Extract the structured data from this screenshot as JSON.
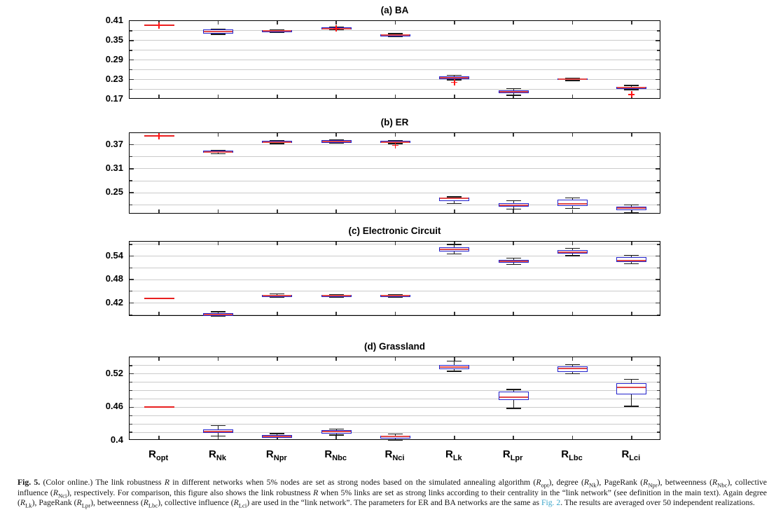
{
  "figure": {
    "link_color": "#3ba5c9",
    "caption_segments": [
      {
        "t": "Fig. 5.",
        "s": "b"
      },
      {
        "t": " (Color online.) The link robustness "
      },
      {
        "t": "R",
        "s": "i"
      },
      {
        "t": " in different networks when 5% nodes are set as strong nodes based on the simulated annealing algorithm ("
      },
      {
        "t": "R",
        "s": "i"
      },
      {
        "t": "opt",
        "s": "sub"
      },
      {
        "t": "), degree ("
      },
      {
        "t": "R",
        "s": "i"
      },
      {
        "t": "Nk",
        "s": "sub"
      },
      {
        "t": "), PageRank ("
      },
      {
        "t": "R",
        "s": "i"
      },
      {
        "t": "Npr",
        "s": "sub"
      },
      {
        "t": "), betweenness ("
      },
      {
        "t": "R",
        "s": "i"
      },
      {
        "t": "Nbc",
        "s": "sub"
      },
      {
        "t": "), collective influence ("
      },
      {
        "t": "R",
        "s": "i"
      },
      {
        "t": "Nci",
        "s": "sub"
      },
      {
        "t": "), respectively. For comparison, this figure also shows the link robustness "
      },
      {
        "t": "R",
        "s": "i"
      },
      {
        "t": " when 5% links are set as strong links according to their centrality in the “link network” (see definition in the main text). Again degree ("
      },
      {
        "t": "R",
        "s": "i"
      },
      {
        "t": "Lk",
        "s": "sub"
      },
      {
        "t": "), PageRank ("
      },
      {
        "t": "R",
        "s": "i"
      },
      {
        "t": "Lpr",
        "s": "sub"
      },
      {
        "t": "), betweenness ("
      },
      {
        "t": "R",
        "s": "i"
      },
      {
        "t": "Lbc",
        "s": "sub"
      },
      {
        "t": "), collective influence ("
      },
      {
        "t": "R",
        "s": "i"
      },
      {
        "t": "Lci",
        "s": "sub"
      },
      {
        "t": ") are used in the “link network”. The parameters for ER and BA networks are the same as "
      },
      {
        "t": "Fig. 2",
        "s": "link"
      },
      {
        "t": ". The results are averaged over 50 independent realizations."
      }
    ]
  },
  "chart_data": {
    "type": "boxplot",
    "colors": {
      "box_edge": "#2222cc",
      "median": "#e04848",
      "whisker": "#1a1a1a",
      "outlier": "#ff1515",
      "grid": "#cbcbcb",
      "frame": "#000000"
    },
    "categories": [
      {
        "key": "R_opt",
        "base": "R",
        "sub": "opt"
      },
      {
        "key": "R_Nk",
        "base": "R",
        "sub": "Nk"
      },
      {
        "key": "R_Npr",
        "base": "R",
        "sub": "Npr"
      },
      {
        "key": "R_Nbc",
        "base": "R",
        "sub": "Nbc"
      },
      {
        "key": "R_Nci",
        "base": "R",
        "sub": "Nci"
      },
      {
        "key": "R_Lk",
        "base": "R",
        "sub": "Lk"
      },
      {
        "key": "R_Lpr",
        "base": "R",
        "sub": "Lpr"
      },
      {
        "key": "R_Lbc",
        "base": "R",
        "sub": "Lbc"
      },
      {
        "key": "R_Lci",
        "base": "R",
        "sub": "Lci"
      }
    ],
    "panels": [
      {
        "id": "a",
        "label": "(a) BA",
        "ylim": [
          0.17,
          0.41
        ],
        "yticks": [
          "0.41",
          "0.35",
          "0.29",
          "0.23",
          "0.17"
        ],
        "ytick_values": [
          0.41,
          0.35,
          0.29,
          0.23,
          0.17
        ],
        "grid_step": 0.03,
        "grid_anchor": 0.41,
        "boxes": [
          {
            "cat": "R_opt",
            "line_only": true,
            "median": 0.397,
            "outliers": [
              0.397
            ]
          },
          {
            "cat": "R_Nk",
            "q1": 0.3715,
            "median": 0.378,
            "q3": 0.3835,
            "lo": 0.369,
            "hi": 0.385,
            "outliers": []
          },
          {
            "cat": "R_Npr",
            "q1": 0.375,
            "median": 0.379,
            "q3": 0.382,
            "lo": 0.374,
            "hi": 0.383,
            "outliers": []
          },
          {
            "cat": "R_Nbc",
            "q1": 0.384,
            "median": 0.387,
            "q3": 0.391,
            "lo": 0.383,
            "hi": 0.392,
            "outliers": [
              0.3865
            ]
          },
          {
            "cat": "R_Nci",
            "q1": 0.363,
            "median": 0.3665,
            "q3": 0.37,
            "lo": 0.362,
            "hi": 0.371,
            "outliers": []
          },
          {
            "cat": "R_Lk",
            "q1": 0.2315,
            "median": 0.2355,
            "q3": 0.239,
            "lo": 0.229,
            "hi": 0.2435,
            "outliers": [
              0.222
            ]
          },
          {
            "cat": "R_Lpr",
            "q1": 0.188,
            "median": 0.1925,
            "q3": 0.197,
            "lo": 0.182,
            "hi": 0.202,
            "outliers": []
          },
          {
            "cat": "R_Lbc",
            "q1": 0.2285,
            "median": 0.2305,
            "q3": 0.2325,
            "lo": 0.227,
            "hi": 0.235,
            "outliers": []
          },
          {
            "cat": "R_Lci",
            "q1": 0.201,
            "median": 0.2045,
            "q3": 0.208,
            "lo": 0.199,
            "hi": 0.212,
            "outliers": [
              0.1845
            ]
          }
        ]
      },
      {
        "id": "b",
        "label": "(b) ER",
        "ylim": [
          0.196,
          0.4
        ],
        "yticks": [
          "0.37",
          "0.31",
          "0.25"
        ],
        "ytick_values": [
          0.37,
          0.31,
          0.25
        ],
        "grid_step": 0.03,
        "grid_anchor": 0.37,
        "boxes": [
          {
            "cat": "R_opt",
            "line_only": true,
            "median": 0.392,
            "outliers": [
              0.392
            ]
          },
          {
            "cat": "R_Nk",
            "q1": 0.35,
            "median": 0.352,
            "q3": 0.3545,
            "lo": 0.347,
            "hi": 0.356,
            "outliers": []
          },
          {
            "cat": "R_Npr",
            "q1": 0.374,
            "median": 0.377,
            "q3": 0.38,
            "lo": 0.373,
            "hi": 0.381,
            "outliers": []
          },
          {
            "cat": "R_Nbc",
            "q1": 0.3745,
            "median": 0.378,
            "q3": 0.381,
            "lo": 0.3735,
            "hi": 0.382,
            "outliers": []
          },
          {
            "cat": "R_Nci",
            "q1": 0.374,
            "median": 0.3765,
            "q3": 0.379,
            "lo": 0.373,
            "hi": 0.38,
            "outliers": [
              0.3685
            ]
          },
          {
            "cat": "R_Lk",
            "q1": 0.229,
            "median": 0.236,
            "q3": 0.2385,
            "lo": 0.2235,
            "hi": 0.24,
            "outliers": []
          },
          {
            "cat": "R_Lpr",
            "q1": 0.216,
            "median": 0.219,
            "q3": 0.224,
            "lo": 0.209,
            "hi": 0.23,
            "outliers": []
          },
          {
            "cat": "R_Lbc",
            "q1": 0.217,
            "median": 0.222,
            "q3": 0.232,
            "lo": 0.211,
            "hi": 0.237,
            "outliers": []
          },
          {
            "cat": "R_Lci",
            "q1": 0.206,
            "median": 0.212,
            "q3": 0.215,
            "lo": 0.2,
            "hi": 0.22,
            "outliers": []
          }
        ]
      },
      {
        "id": "c",
        "label": "(c) Electronic Circuit",
        "ylim": [
          0.385,
          0.578
        ],
        "yticks": [
          "0.54",
          "0.48",
          "0.42"
        ],
        "ytick_values": [
          0.54,
          0.48,
          0.42
        ],
        "grid_step": 0.03,
        "grid_anchor": 0.54,
        "boxes": [
          {
            "cat": "R_opt",
            "line_only": true,
            "median": 0.431,
            "outliers": []
          },
          {
            "cat": "R_Nk",
            "q1": 0.387,
            "median": 0.39,
            "q3": 0.394,
            "lo": 0.386,
            "hi": 0.3975,
            "outliers": []
          },
          {
            "cat": "R_Npr",
            "q1": 0.435,
            "median": 0.439,
            "q3": 0.441,
            "lo": 0.434,
            "hi": 0.443,
            "outliers": []
          },
          {
            "cat": "R_Nbc",
            "q1": 0.436,
            "median": 0.438,
            "q3": 0.44,
            "lo": 0.434,
            "hi": 0.442,
            "outliers": []
          },
          {
            "cat": "R_Nci",
            "q1": 0.436,
            "median": 0.439,
            "q3": 0.441,
            "lo": 0.434,
            "hi": 0.442,
            "outliers": []
          },
          {
            "cat": "R_Lk",
            "q1": 0.552,
            "median": 0.558,
            "q3": 0.563,
            "lo": 0.546,
            "hi": 0.57,
            "outliers": []
          },
          {
            "cat": "R_Lpr",
            "q1": 0.523,
            "median": 0.527,
            "q3": 0.531,
            "lo": 0.519,
            "hi": 0.535,
            "outliers": []
          },
          {
            "cat": "R_Lbc",
            "q1": 0.546,
            "median": 0.551,
            "q3": 0.555,
            "lo": 0.541,
            "hi": 0.56,
            "outliers": []
          },
          {
            "cat": "R_Lci",
            "q1": 0.525,
            "median": 0.529,
            "q3": 0.538,
            "lo": 0.521,
            "hi": 0.542,
            "outliers": []
          }
        ]
      },
      {
        "id": "d",
        "label": "(d) Grassland",
        "ylim": [
          0.4,
          0.55
        ],
        "yticks": [
          "0.52",
          "0.46",
          "0.4"
        ],
        "ytick_values": [
          0.52,
          0.46,
          0.4
        ],
        "grid_step": 0.015,
        "grid_anchor": 0.52,
        "boxes": [
          {
            "cat": "R_opt",
            "line_only": true,
            "median": 0.46,
            "outliers": []
          },
          {
            "cat": "R_Nk",
            "q1": 0.414,
            "median": 0.417,
            "q3": 0.42,
            "lo": 0.408,
            "hi": 0.427,
            "outliers": []
          },
          {
            "cat": "R_Npr",
            "q1": 0.4045,
            "median": 0.408,
            "q3": 0.41,
            "lo": 0.402,
            "hi": 0.4125,
            "outliers": []
          },
          {
            "cat": "R_Nbc",
            "q1": 0.413,
            "median": 0.4165,
            "q3": 0.419,
            "lo": 0.41,
            "hi": 0.421,
            "outliers": []
          },
          {
            "cat": "R_Nci",
            "q1": 0.404,
            "median": 0.407,
            "q3": 0.409,
            "lo": 0.401,
            "hi": 0.412,
            "outliers": []
          },
          {
            "cat": "R_Lk",
            "q1": 0.529,
            "median": 0.532,
            "q3": 0.536,
            "lo": 0.525,
            "hi": 0.543,
            "outliers": []
          },
          {
            "cat": "R_Lpr",
            "q1": 0.473,
            "median": 0.478,
            "q3": 0.488,
            "lo": 0.458,
            "hi": 0.492,
            "outliers": []
          },
          {
            "cat": "R_Lbc",
            "q1": 0.524,
            "median": 0.53,
            "q3": 0.534,
            "lo": 0.52,
            "hi": 0.537,
            "outliers": []
          },
          {
            "cat": "R_Lci",
            "q1": 0.483,
            "median": 0.496,
            "q3": 0.503,
            "lo": 0.462,
            "hi": 0.51,
            "outliers": []
          }
        ]
      }
    ]
  }
}
